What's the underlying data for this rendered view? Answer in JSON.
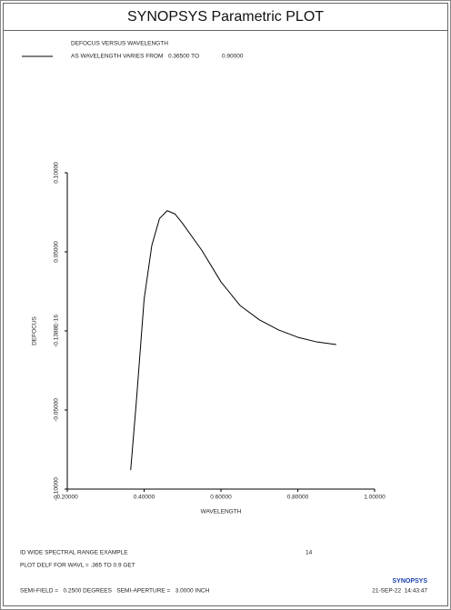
{
  "header": {
    "title": "SYNOPSYS Parametric PLOT"
  },
  "chart_data": {
    "type": "line",
    "title": "DEFOCUS VERSUS WAVELENGTH",
    "range_from": "0.36500 TO",
    "range_to": "0.90000",
    "x_label": "WAVELENGTH",
    "y_label": "DEFOCUS",
    "x": [
      0.365,
      0.38,
      0.4,
      0.42,
      0.44,
      0.46,
      0.48,
      0.5,
      0.55,
      0.6,
      0.65,
      0.7,
      0.75,
      0.8,
      0.85,
      0.9
    ],
    "series": [
      {
        "name": "AS WAVELENGTH VARIES FROM",
        "color": "#000000",
        "values": [
          -0.088,
          -0.044,
          0.02,
          0.054,
          0.071,
          0.076,
          0.074,
          0.068,
          0.051,
          0.031,
          0.016,
          0.007,
          0.0006,
          -0.004,
          -0.007,
          -0.0086
        ]
      }
    ],
    "xlim": [
      0.2,
      1.0
    ],
    "xticks": [
      {
        "value": 0.2,
        "label": "0.20000"
      },
      {
        "value": 0.4,
        "label": "0.40000"
      },
      {
        "value": 0.6,
        "label": "0.60000"
      },
      {
        "value": 0.8,
        "label": "0.80000"
      },
      {
        "value": 1.0,
        "label": "1.00000"
      }
    ],
    "ylim": [
      -0.1,
      0.1
    ],
    "yticks": [
      {
        "value": -0.1,
        "label": "-0.10000"
      },
      {
        "value": -0.05,
        "label": "-0.05000"
      },
      {
        "value": 0,
        "label": "-0.1388E-16"
      },
      {
        "value": 0.05,
        "label": "0.05000"
      },
      {
        "value": 0.1,
        "label": "0.10000"
      }
    ],
    "grid": false
  },
  "footer": {
    "line1": "ID WIDE SPECTRAL RANGE EXAMPLE",
    "number": "14",
    "line2": "PLOT DELF FOR WAVL = .365 TO 0.9 GET",
    "logo": "SYNOPSYS",
    "line3": "SEMI-FIELD =   0.2500 DEGREES   SEMI-APERTURE =   3.0000 INCH",
    "date": "21-SEP-22  14:43:47"
  }
}
